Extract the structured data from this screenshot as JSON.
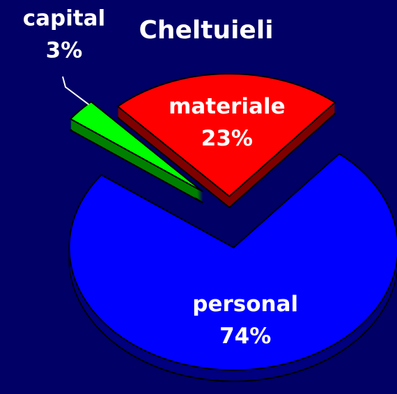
{
  "chart_data": {
    "type": "pie",
    "title": "Cheltuieli",
    "categories": [
      "materiale",
      "capital",
      "personal"
    ],
    "values": [
      23,
      3,
      74
    ],
    "value_labels": [
      "23%",
      "3%",
      "74%"
    ],
    "colors": [
      "#ff0000",
      "#00ff00",
      "#0000ff"
    ]
  }
}
